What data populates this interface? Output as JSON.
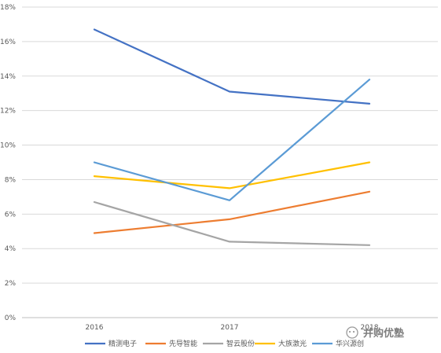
{
  "chart_data": {
    "type": "line",
    "categories": [
      "2016",
      "2017",
      "2018"
    ],
    "y_ticks": [
      "0%",
      "2%",
      "4%",
      "6%",
      "8%",
      "10%",
      "12%",
      "14%",
      "16%",
      "18%"
    ],
    "ylim": [
      0,
      18
    ],
    "grid": true,
    "legend_position": "bottom",
    "series": [
      {
        "name": "精测电子",
        "color": "#4472c4",
        "values": [
          16.7,
          13.1,
          12.4
        ]
      },
      {
        "name": "先导智能",
        "color": "#ed7d31",
        "values": [
          4.9,
          5.7,
          7.3
        ]
      },
      {
        "name": "智云股份",
        "color": "#a5a5a5",
        "values": [
          6.7,
          4.4,
          4.2
        ]
      },
      {
        "name": "大族激光",
        "color": "#ffc000",
        "values": [
          8.2,
          7.5,
          9.0
        ]
      },
      {
        "name": "华兴源创",
        "color": "#5b9bd5",
        "values": [
          9.0,
          6.8,
          13.8
        ]
      }
    ]
  },
  "watermark": {
    "text": "并购优塾"
  }
}
